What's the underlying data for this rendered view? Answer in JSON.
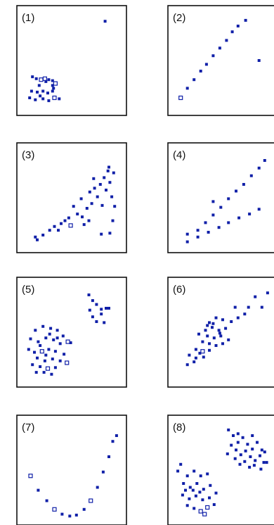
{
  "chart_data": [
    {
      "type": "scatter",
      "panel_label": "(1)",
      "xlim": [
        0,
        10
      ],
      "ylim": [
        0,
        10
      ],
      "points": [
        [
          8.5,
          9.1
        ],
        [
          0.9,
          3.3
        ],
        [
          1.3,
          3.1
        ],
        [
          1.8,
          3.0
        ],
        [
          2.3,
          2.8
        ],
        [
          2.2,
          3.1
        ],
        [
          2.6,
          3.0
        ],
        [
          3.0,
          2.9
        ],
        [
          3.3,
          2.6
        ],
        [
          3.0,
          2.4
        ],
        [
          1.6,
          2.4
        ],
        [
          0.8,
          1.8
        ],
        [
          1.4,
          1.7
        ],
        [
          2.0,
          1.8
        ],
        [
          2.5,
          1.6
        ],
        [
          3.0,
          1.8
        ],
        [
          0.6,
          1.1
        ],
        [
          1.2,
          0.9
        ],
        [
          2.0,
          1.0
        ],
        [
          2.6,
          0.8
        ],
        [
          3.2,
          1.1
        ],
        [
          3.7,
          1.0
        ],
        [
          1.7,
          1.3
        ],
        [
          3.1,
          2.1
        ]
      ],
      "hollow": [
        [
          1.8,
          3.0
        ],
        [
          2.2,
          3.1
        ],
        [
          3.3,
          2.6
        ],
        [
          3.2,
          1.1
        ]
      ]
    },
    {
      "type": "scatter",
      "panel_label": "(2)",
      "xlim": [
        0,
        10
      ],
      "ylim": [
        0,
        10
      ],
      "points": [
        [
          0.6,
          1.1
        ],
        [
          1.3,
          2.1
        ],
        [
          2.0,
          3.0
        ],
        [
          2.7,
          3.9
        ],
        [
          3.3,
          4.6
        ],
        [
          4.0,
          5.5
        ],
        [
          4.7,
          6.3
        ],
        [
          5.4,
          7.1
        ],
        [
          6.0,
          8.0
        ],
        [
          6.6,
          8.6
        ],
        [
          7.4,
          9.2
        ],
        [
          8.8,
          5.0
        ]
      ],
      "hollow": [
        [
          0.6,
          1.1
        ]
      ]
    },
    {
      "type": "scatter",
      "panel_label": "(3)",
      "xlim": [
        0,
        10
      ],
      "ylim": [
        0,
        10
      ],
      "points": [
        [
          1.4,
          0.6
        ],
        [
          1.2,
          0.9
        ],
        [
          2.0,
          1.1
        ],
        [
          2.7,
          1.6
        ],
        [
          3.2,
          2.0
        ],
        [
          3.6,
          1.6
        ],
        [
          3.9,
          2.3
        ],
        [
          4.3,
          2.6
        ],
        [
          4.7,
          2.9
        ],
        [
          4.9,
          2.1
        ],
        [
          5.2,
          4.1
        ],
        [
          5.6,
          3.3
        ],
        [
          6.0,
          4.9
        ],
        [
          6.1,
          3.0
        ],
        [
          6.3,
          2.2
        ],
        [
          6.6,
          3.9
        ],
        [
          6.9,
          5.6
        ],
        [
          7.1,
          4.4
        ],
        [
          7.4,
          6.0
        ],
        [
          7.7,
          5.1
        ],
        [
          8.0,
          6.4
        ],
        [
          8.2,
          4.2
        ],
        [
          8.4,
          7.1
        ],
        [
          8.6,
          5.8
        ],
        [
          8.8,
          7.8
        ],
        [
          9.0,
          6.6
        ],
        [
          9.2,
          5.1
        ],
        [
          9.4,
          7.6
        ],
        [
          9.5,
          4.1
        ],
        [
          8.1,
          1.2
        ],
        [
          9.0,
          1.3
        ],
        [
          9.3,
          2.6
        ],
        [
          7.3,
          7.0
        ],
        [
          8.9,
          8.2
        ],
        [
          6.8,
          2.6
        ]
      ],
      "hollow": [
        [
          4.9,
          2.1
        ]
      ]
    },
    {
      "type": "scatter",
      "panel_label": "(4)",
      "xlim": [
        0,
        10
      ],
      "ylim": [
        0,
        10
      ],
      "points": [
        [
          1.3,
          0.4
        ],
        [
          1.3,
          1.2
        ],
        [
          2.4,
          1.6
        ],
        [
          3.2,
          2.4
        ],
        [
          4.0,
          3.2
        ],
        [
          4.8,
          4.0
        ],
        [
          5.6,
          4.9
        ],
        [
          6.4,
          5.7
        ],
        [
          7.2,
          6.4
        ],
        [
          8.0,
          7.3
        ],
        [
          8.8,
          8.1
        ],
        [
          9.4,
          8.9
        ],
        [
          2.4,
          0.9
        ],
        [
          3.5,
          1.4
        ],
        [
          4.6,
          1.9
        ],
        [
          5.6,
          2.4
        ],
        [
          6.7,
          2.9
        ],
        [
          7.8,
          3.3
        ],
        [
          8.8,
          3.8
        ],
        [
          4.0,
          4.6
        ]
      ],
      "hollow": []
    },
    {
      "type": "scatter",
      "panel_label": "(5)",
      "xlim": [
        0,
        10
      ],
      "ylim": [
        0,
        10
      ],
      "points": [
        [
          6.8,
          8.9
        ],
        [
          7.2,
          8.3
        ],
        [
          7.6,
          7.9
        ],
        [
          8.1,
          7.4
        ],
        [
          8.6,
          7.5
        ],
        [
          8.9,
          7.5
        ],
        [
          7.2,
          6.6
        ],
        [
          7.6,
          6.1
        ],
        [
          8.1,
          6.9
        ],
        [
          8.4,
          6.0
        ],
        [
          6.9,
          7.3
        ],
        [
          1.2,
          5.2
        ],
        [
          2.0,
          5.6
        ],
        [
          2.8,
          5.4
        ],
        [
          3.5,
          5.2
        ],
        [
          4.1,
          4.6
        ],
        [
          4.6,
          4.0
        ],
        [
          0.7,
          4.3
        ],
        [
          1.5,
          4.0
        ],
        [
          2.3,
          4.4
        ],
        [
          3.1,
          4.2
        ],
        [
          3.8,
          3.8
        ],
        [
          0.5,
          3.2
        ],
        [
          1.1,
          2.9
        ],
        [
          1.9,
          3.0
        ],
        [
          2.6,
          3.2
        ],
        [
          3.3,
          3.0
        ],
        [
          4.2,
          2.7
        ],
        [
          1.4,
          2.3
        ],
        [
          2.2,
          2.0
        ],
        [
          3.0,
          2.2
        ],
        [
          3.8,
          2.0
        ],
        [
          4.5,
          1.8
        ],
        [
          0.9,
          1.6
        ],
        [
          1.7,
          1.4
        ],
        [
          2.5,
          1.2
        ],
        [
          3.3,
          1.3
        ],
        [
          2.1,
          0.8
        ],
        [
          2.9,
          0.6
        ],
        [
          1.3,
          0.8
        ],
        [
          2.7,
          4.8
        ],
        [
          3.5,
          4.4
        ],
        [
          1.7,
          3.6
        ],
        [
          4.9,
          3.9
        ],
        [
          2.3,
          2.6
        ]
      ],
      "hollow": [
        [
          1.9,
          3.0
        ],
        [
          2.5,
          1.2
        ],
        [
          4.5,
          1.8
        ],
        [
          4.6,
          4.0
        ]
      ]
    },
    {
      "type": "scatter",
      "panel_label": "(6)",
      "xlim": [
        0,
        10
      ],
      "ylim": [
        0,
        10
      ],
      "points": [
        [
          9.7,
          9.1
        ],
        [
          8.4,
          8.7
        ],
        [
          9.1,
          7.6
        ],
        [
          7.7,
          7.6
        ],
        [
          6.3,
          7.6
        ],
        [
          7.3,
          6.9
        ],
        [
          6.6,
          6.5
        ],
        [
          5.9,
          6.1
        ],
        [
          5.0,
          6.3
        ],
        [
          4.3,
          6.5
        ],
        [
          3.6,
          6.0
        ],
        [
          3.9,
          5.5
        ],
        [
          4.6,
          5.2
        ],
        [
          5.3,
          5.4
        ],
        [
          3.2,
          5.2
        ],
        [
          2.5,
          4.8
        ],
        [
          3.4,
          4.6
        ],
        [
          4.1,
          4.4
        ],
        [
          4.8,
          4.6
        ],
        [
          2.9,
          4.0
        ],
        [
          3.6,
          3.8
        ],
        [
          4.3,
          3.6
        ],
        [
          5.0,
          3.8
        ],
        [
          2.2,
          3.2
        ],
        [
          2.9,
          3.0
        ],
        [
          3.6,
          3.1
        ],
        [
          1.5,
          2.6
        ],
        [
          2.2,
          2.3
        ],
        [
          3.0,
          2.4
        ],
        [
          1.3,
          1.6
        ],
        [
          2.0,
          1.9
        ],
        [
          5.6,
          4.2
        ],
        [
          4.7,
          4.9
        ],
        [
          3.4,
          5.7
        ],
        [
          4.0,
          5.9
        ],
        [
          2.6,
          2.8
        ]
      ],
      "hollow": [
        [
          2.9,
          3.0
        ]
      ]
    },
    {
      "type": "scatter",
      "panel_label": "(7)",
      "xlim": [
        0,
        10
      ],
      "ylim": [
        0,
        10
      ],
      "points": [
        [
          0.7,
          4.4
        ],
        [
          1.5,
          2.9
        ],
        [
          2.4,
          1.8
        ],
        [
          3.2,
          0.9
        ],
        [
          4.0,
          0.4
        ],
        [
          4.8,
          0.2
        ],
        [
          5.5,
          0.3
        ],
        [
          6.3,
          0.9
        ],
        [
          7.0,
          1.8
        ],
        [
          7.7,
          3.2
        ],
        [
          8.3,
          4.8
        ],
        [
          8.9,
          6.4
        ],
        [
          9.3,
          8.0
        ],
        [
          9.7,
          8.6
        ]
      ],
      "hollow": [
        [
          0.7,
          4.4
        ],
        [
          3.2,
          0.9
        ],
        [
          7.0,
          1.8
        ]
      ]
    },
    {
      "type": "scatter",
      "panel_label": "(8)",
      "xlim": [
        0,
        10
      ],
      "ylim": [
        0,
        10
      ],
      "points": [
        [
          5.6,
          9.2
        ],
        [
          6.1,
          8.6
        ],
        [
          6.6,
          7.9
        ],
        [
          7.1,
          8.4
        ],
        [
          7.6,
          7.7
        ],
        [
          8.1,
          7.2
        ],
        [
          8.6,
          7.9
        ],
        [
          9.1,
          7.1
        ],
        [
          5.9,
          7.6
        ],
        [
          6.4,
          7.1
        ],
        [
          6.9,
          6.6
        ],
        [
          7.4,
          7.0
        ],
        [
          7.9,
          6.4
        ],
        [
          8.4,
          6.0
        ],
        [
          8.9,
          6.5
        ],
        [
          9.3,
          5.8
        ],
        [
          6.3,
          6.2
        ],
        [
          6.8,
          5.6
        ],
        [
          7.3,
          5.9
        ],
        [
          7.8,
          5.3
        ],
        [
          8.3,
          5.5
        ],
        [
          9.0,
          5.1
        ],
        [
          9.6,
          5.8
        ],
        [
          5.5,
          6.7
        ],
        [
          8.1,
          8.6
        ],
        [
          6.6,
          8.8
        ],
        [
          9.4,
          6.9
        ],
        [
          0.6,
          5.6
        ],
        [
          1.3,
          4.4
        ],
        [
          2.0,
          4.9
        ],
        [
          2.7,
          4.4
        ],
        [
          3.4,
          4.6
        ],
        [
          0.9,
          3.6
        ],
        [
          1.6,
          3.2
        ],
        [
          2.3,
          3.6
        ],
        [
          3.0,
          3.0
        ],
        [
          3.7,
          3.4
        ],
        [
          0.8,
          2.4
        ],
        [
          1.5,
          2.0
        ],
        [
          2.2,
          2.3
        ],
        [
          2.9,
          1.9
        ],
        [
          3.6,
          2.1
        ],
        [
          1.3,
          1.3
        ],
        [
          2.0,
          1.0
        ],
        [
          2.7,
          0.7
        ],
        [
          3.4,
          1.1
        ],
        [
          4.1,
          1.4
        ],
        [
          2.6,
          2.7
        ],
        [
          1.9,
          2.9
        ],
        [
          3.1,
          0.4
        ],
        [
          1.1,
          2.9
        ],
        [
          4.3,
          2.6
        ],
        [
          0.3,
          4.9
        ]
      ],
      "hollow": [
        [
          2.7,
          0.7
        ],
        [
          3.1,
          0.4
        ],
        [
          3.4,
          1.1
        ]
      ]
    }
  ]
}
